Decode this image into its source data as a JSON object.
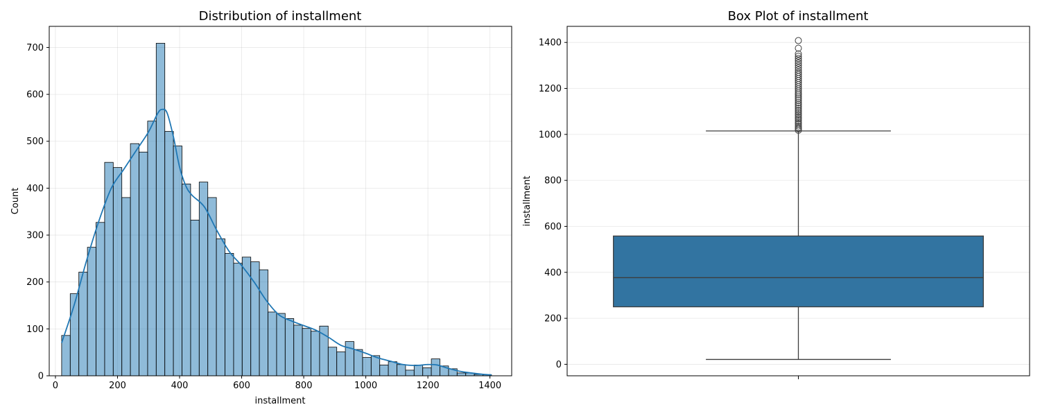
{
  "chart_data": [
    {
      "type": "bar",
      "subtype": "histogram-with-kde",
      "title": "Distribution of installment",
      "xlabel": "installment",
      "ylabel": "Count",
      "xlim": [
        -20,
        1470
      ],
      "ylim": [
        0,
        745
      ],
      "xticks": [
        0,
        200,
        400,
        600,
        800,
        1000,
        1200,
        1400
      ],
      "yticks": [
        0,
        100,
        200,
        300,
        400,
        500,
        600,
        700
      ],
      "grid": true,
      "color": "#1f77b4",
      "bin_edges": [
        20,
        47.7,
        75.4,
        103.1,
        130.8,
        158.5,
        186.2,
        213.9,
        241.6,
        269.3,
        297,
        324.7,
        352.4,
        380.1,
        407.8,
        435.5,
        463.2,
        490.9,
        518.6,
        546.3,
        574,
        601.7,
        629.4,
        657.1,
        684.8,
        712.5,
        740.2,
        767.9,
        795.6,
        823.3,
        851,
        878.7,
        906.4,
        934.1,
        961.8,
        989.5,
        1017.2,
        1044.9,
        1072.6,
        1100.3,
        1128,
        1155.7,
        1183.4,
        1211.1,
        1238.8,
        1266.5,
        1294.2,
        1321.9,
        1349.6,
        1377.3,
        1405
      ],
      "counts": [
        86,
        175,
        221,
        274,
        327,
        455,
        444,
        380,
        495,
        477,
        543,
        709,
        521,
        490,
        409,
        332,
        413,
        380,
        292,
        261,
        240,
        253,
        243,
        226,
        136,
        133,
        122,
        108,
        101,
        95,
        106,
        61,
        51,
        73,
        56,
        39,
        43,
        23,
        30,
        24,
        12,
        23,
        17,
        36,
        21,
        15,
        6,
        6,
        3,
        2
      ],
      "kde": {
        "x": [
          20,
          60,
          100,
          140,
          180,
          220,
          260,
          300,
          330,
          345,
          360,
          380,
          400,
          420,
          440,
          480,
          520,
          560,
          600,
          640,
          680,
          720,
          760,
          800,
          840,
          880,
          920,
          960,
          1000,
          1040,
          1080,
          1120,
          1160,
          1200,
          1230,
          1260,
          1300,
          1340,
          1380,
          1405
        ],
        "y": [
          70,
          150,
          245,
          330,
          400,
          440,
          480,
          520,
          560,
          568,
          560,
          510,
          445,
          405,
          385,
          360,
          310,
          265,
          235,
          200,
          160,
          130,
          117,
          107,
          97,
          82,
          65,
          57,
          48,
          38,
          31,
          24,
          22,
          24,
          23,
          17,
          10,
          6,
          3,
          2
        ]
      }
    },
    {
      "type": "box",
      "title": "Box Plot of installment",
      "xlabel": "",
      "ylabel": "installment",
      "ylim": [
        -50,
        1470
      ],
      "yticks": [
        0,
        200,
        400,
        600,
        800,
        1000,
        1200,
        1400
      ],
      "grid": true,
      "color": "#3274a1",
      "whisker_low": 21,
      "q1": 250,
      "median": 377,
      "q3": 558,
      "whisker_high": 1015,
      "outliers": [
        1018,
        1024,
        1030,
        1037,
        1045,
        1052,
        1060,
        1068,
        1075,
        1083,
        1090,
        1098,
        1106,
        1114,
        1122,
        1130,
        1138,
        1147,
        1155,
        1163,
        1172,
        1180,
        1189,
        1198,
        1207,
        1216,
        1225,
        1234,
        1243,
        1252,
        1261,
        1270,
        1280,
        1290,
        1300,
        1310,
        1320,
        1330,
        1340,
        1350,
        1375,
        1408
      ]
    }
  ]
}
